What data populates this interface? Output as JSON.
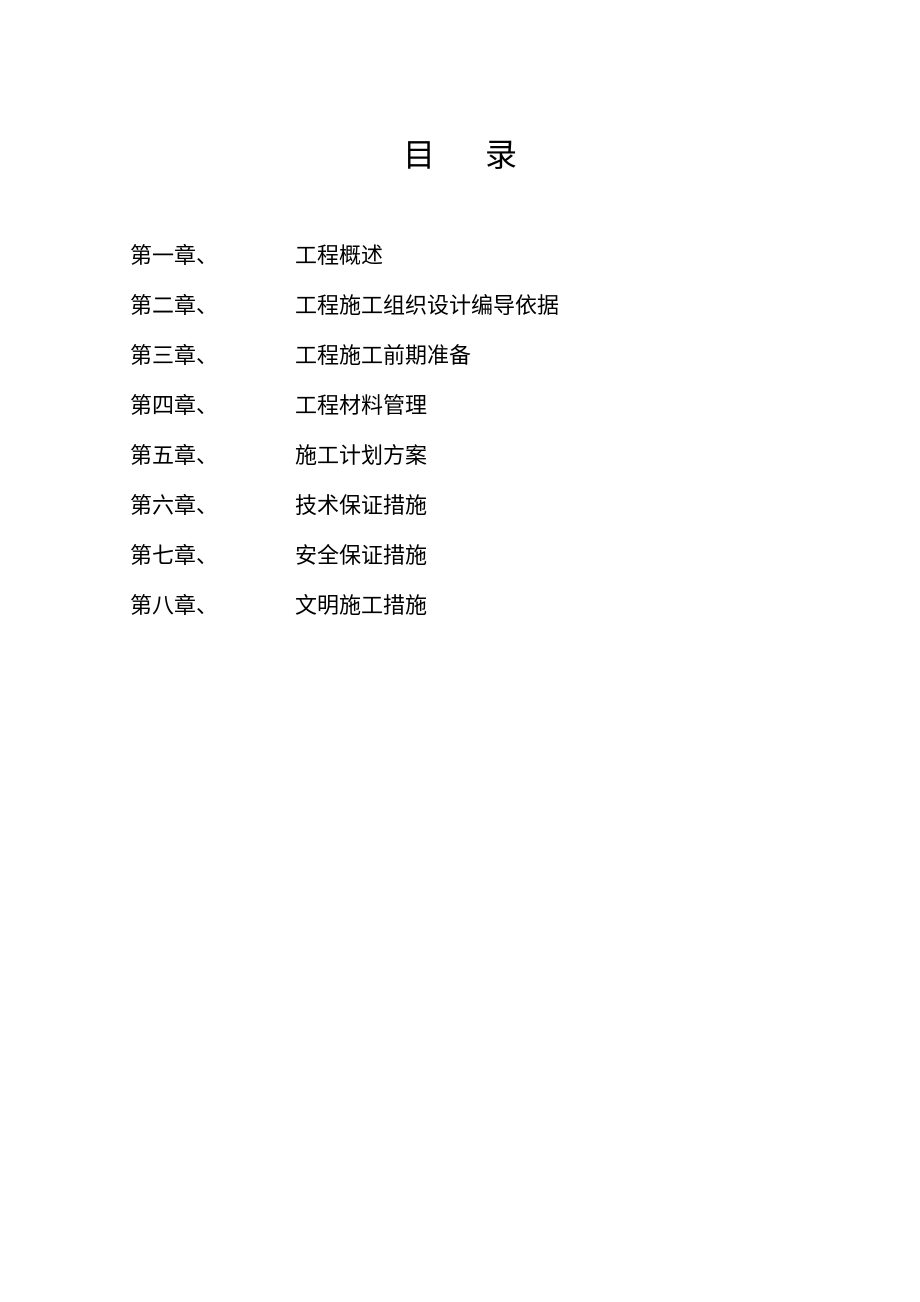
{
  "heading": "目录",
  "toc": [
    {
      "chapter": "第一章、",
      "title": "工程概述"
    },
    {
      "chapter": "第二章、",
      "title": "工程施工组织设计编导依据"
    },
    {
      "chapter": "第三章、",
      "title": "工程施工前期准备"
    },
    {
      "chapter": "第四章、",
      "title": "工程材料管理"
    },
    {
      "chapter": "第五章、",
      "title": "施工计划方案"
    },
    {
      "chapter": "第六章、",
      "title": "技术保证措施"
    },
    {
      "chapter": "第七章、",
      "title": "安全保证措施"
    },
    {
      "chapter": "第八章、",
      "title": "文明施工措施"
    }
  ],
  "style": {
    "page_bg": "#ffffff",
    "text_color": "#000000",
    "heading_fontsize": 32,
    "heading_letter_spacing": 50,
    "body_fontsize": 22,
    "line_height": 50,
    "left_padding": 130,
    "chapter_col_width": 165,
    "top_padding": 130,
    "heading_margin_bottom": 55,
    "font_family": "SimSun"
  }
}
